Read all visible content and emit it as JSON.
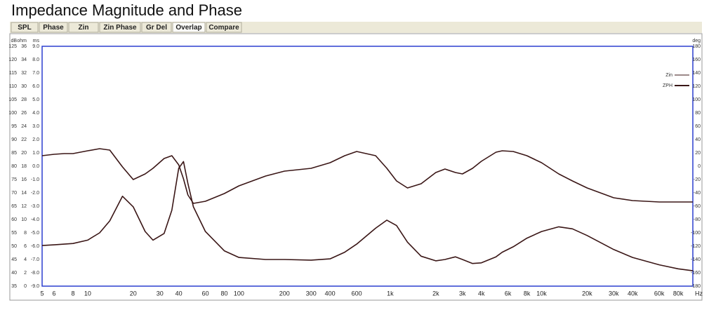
{
  "title": "Impedance Magnitude and Phase",
  "tabs": [
    "SPL",
    "Phase",
    "Zin",
    "Zin Phase",
    "Gr Del",
    "Overlap",
    "Compare"
  ],
  "selected_tab": 5,
  "chart_data": {
    "type": "line",
    "xscale": "log",
    "xlim": [
      5,
      100000
    ],
    "xticks": [
      5,
      6,
      8,
      10,
      20,
      30,
      40,
      60,
      80,
      100,
      200,
      300,
      400,
      600,
      {
        "value": 1000,
        "label": "1k"
      },
      {
        "value": 2000,
        "label": "2k"
      },
      {
        "value": 3000,
        "label": "3k"
      },
      {
        "value": 4000,
        "label": "4k"
      },
      {
        "value": 6000,
        "label": "6k"
      },
      {
        "value": 8000,
        "label": "8k"
      },
      {
        "value": 10000,
        "label": "10k"
      },
      {
        "value": 20000,
        "label": "20k"
      },
      {
        "value": 30000,
        "label": "30k"
      },
      {
        "value": 40000,
        "label": "40k"
      },
      {
        "value": 60000,
        "label": "60k"
      },
      {
        "value": 80000,
        "label": "80k"
      }
    ],
    "xminor_grid": [
      7,
      9,
      50,
      70,
      90,
      500,
      700,
      900,
      5000,
      7000,
      9000,
      50000,
      70000,
      90000
    ],
    "xlabel": "Hz",
    "grid": true,
    "yaxes": [
      {
        "label": "dB",
        "lim": [
          35,
          125
        ],
        "ticks": [
          125,
          120,
          115,
          110,
          105,
          100,
          95,
          90,
          85,
          80,
          75,
          70,
          65,
          60,
          55,
          50,
          45,
          40,
          35
        ]
      },
      {
        "label": "ohm",
        "lim": [
          0,
          36
        ],
        "ticks": [
          36,
          34,
          32,
          30,
          28,
          26,
          24,
          22,
          20,
          18,
          16,
          14,
          12,
          10,
          8,
          6,
          4,
          2,
          0
        ]
      },
      {
        "label": "ms",
        "lim": [
          -9,
          9
        ],
        "ticks": [
          {
            "value": 9,
            "label": "9.0"
          },
          {
            "value": 8,
            "label": "8.0"
          },
          {
            "value": 7,
            "label": "7.0"
          },
          {
            "value": 6,
            "label": "6.0"
          },
          {
            "value": 5,
            "label": "5.0"
          },
          {
            "value": 4,
            "label": "4.0"
          },
          {
            "value": 3,
            "label": "3.0"
          },
          {
            "value": 2,
            "label": "2.0"
          },
          {
            "value": 1,
            "label": "1.0"
          },
          {
            "value": 0,
            "label": "0.0"
          },
          {
            "value": -1,
            "label": "-1.0"
          },
          {
            "value": -2,
            "label": "-2.0"
          },
          {
            "value": -3,
            "label": "-3.0"
          },
          {
            "value": -4,
            "label": "-4.0"
          },
          {
            "value": -5,
            "label": "-5.0"
          },
          {
            "value": -6,
            "label": "-6.0"
          },
          {
            "value": -7,
            "label": "-7.0"
          },
          {
            "value": -8,
            "label": "-8.0"
          },
          {
            "value": -9,
            "label": "-9.0"
          }
        ]
      }
    ],
    "y2label": "deg",
    "y2lim": [
      -180,
      180
    ],
    "y2ticks": [
      180,
      160,
      140,
      120,
      100,
      80,
      60,
      40,
      20,
      0,
      -20,
      -40,
      -60,
      -80,
      -100,
      -120,
      -140,
      -160,
      -180
    ],
    "reference_line": {
      "axis": "y2",
      "value": 0,
      "color": "#a03a3a"
    },
    "legend": "top-right",
    "x": [
      5,
      6,
      7,
      8,
      10,
      12,
      14,
      17,
      20,
      24,
      27,
      32,
      36,
      40,
      43,
      46,
      50,
      60,
      80,
      100,
      150,
      200,
      300,
      400,
      500,
      600,
      800,
      950,
      1100,
      1300,
      1600,
      2000,
      2300,
      2700,
      3000,
      3500,
      4000,
      5000,
      5500,
      6500,
      8000,
      10000,
      13000,
      16000,
      20000,
      30000,
      40000,
      60000,
      80000,
      100000
    ],
    "series": [
      {
        "name": "Zin",
        "color": "#3a1616",
        "axis": "y",
        "values": [
          6.1,
          6.2,
          6.3,
          6.4,
          6.9,
          8.0,
          9.8,
          13.5,
          11.9,
          8.2,
          6.9,
          7.9,
          11.4,
          17.7,
          18.7,
          15.4,
          11.9,
          8.2,
          5.3,
          4.3,
          4.0,
          4.0,
          3.9,
          4.1,
          5.1,
          6.3,
          8.7,
          9.9,
          9.1,
          6.6,
          4.5,
          3.8,
          4.0,
          4.4,
          4.0,
          3.4,
          3.5,
          4.4,
          5.1,
          5.9,
          7.2,
          8.2,
          8.9,
          8.6,
          7.6,
          5.5,
          4.3,
          3.2,
          2.6,
          2.3
        ]
      },
      {
        "name": "ZPH",
        "color": "#3a1616",
        "axis": "y2",
        "values": [
          15.8,
          17.9,
          18.9,
          18.9,
          23.2,
          26.3,
          24.2,
          -1.1,
          -20,
          -11.6,
          -3.2,
          11.6,
          15.8,
          2.1,
          -18.9,
          -43.2,
          -55.8,
          -52.6,
          -41.1,
          -29.5,
          -14.7,
          -7.4,
          -3.2,
          5.3,
          15.8,
          22.1,
          15.8,
          -3.2,
          -22.1,
          -32.6,
          -26.3,
          -9.5,
          -4.2,
          -9.5,
          -11.6,
          -3.2,
          7.4,
          21.1,
          23.2,
          22.1,
          15.8,
          5.3,
          -11.6,
          -22.1,
          -32.6,
          -47.4,
          -51.6,
          -53.7,
          -53.7,
          -53.7
        ]
      }
    ]
  }
}
